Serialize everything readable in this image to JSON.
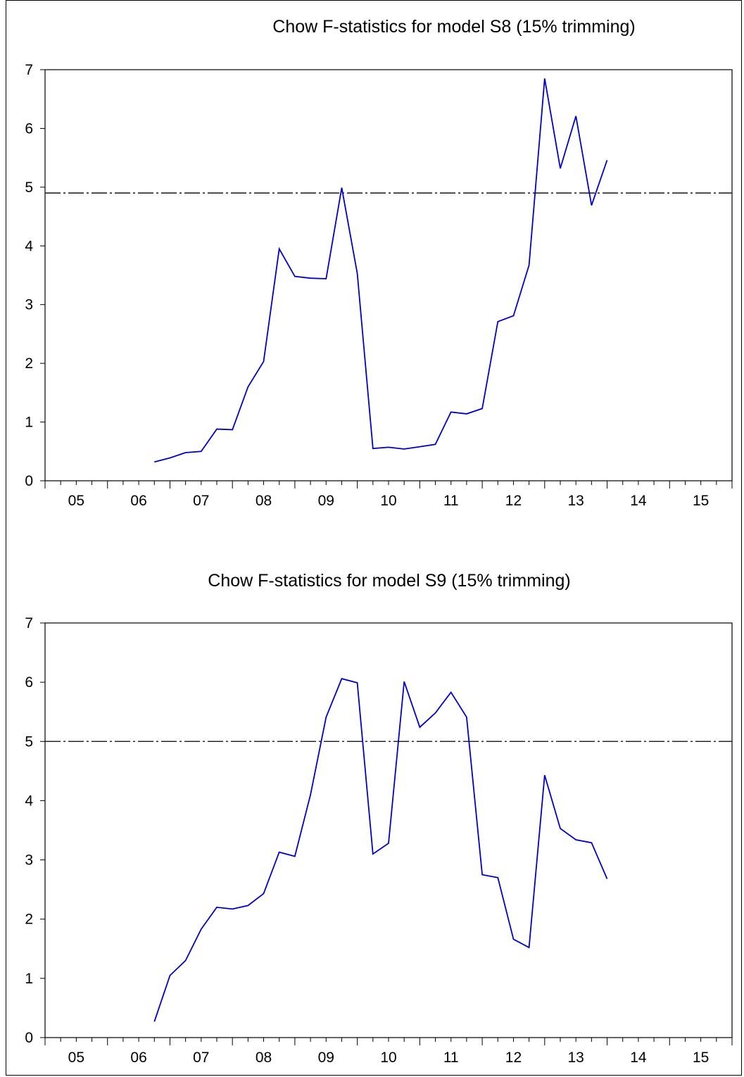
{
  "chart_data": [
    {
      "type": "line",
      "title": "Chow F-statistics for model S8 (15% trimming)",
      "xlabel": "",
      "ylabel": "",
      "x_tick_labels": [
        "05",
        "06",
        "07",
        "08",
        "09",
        "10",
        "11",
        "12",
        "13",
        "14",
        "15"
      ],
      "x_range": [
        2005.0,
        2016.0
      ],
      "ylim": [
        0,
        7
      ],
      "y_ticks": [
        0,
        1,
        2,
        3,
        4,
        5,
        6,
        7
      ],
      "grid": false,
      "reference_line": {
        "value": 4.9,
        "style": "dashed",
        "color": "#000000"
      },
      "series": [
        {
          "color": "#0000cc",
          "x": [
            2006.75,
            2007.0,
            2007.25,
            2007.5,
            2007.75,
            2008.0,
            2008.25,
            2008.5,
            2008.75,
            2009.0,
            2009.25,
            2009.5,
            2009.75,
            2010.0,
            2010.25,
            2010.5,
            2010.75,
            2011.0,
            2011.25,
            2011.5,
            2011.75,
            2012.0,
            2012.25,
            2012.5,
            2012.75,
            2013.0,
            2013.25,
            2013.5,
            2013.75,
            2014.0
          ],
          "values": [
            0.32,
            0.39,
            0.48,
            0.5,
            0.88,
            0.87,
            1.6,
            2.03,
            3.95,
            3.48,
            3.45,
            3.44,
            4.99,
            3.53,
            0.55,
            0.57,
            0.54,
            0.58,
            0.62,
            1.17,
            1.14,
            1.23,
            2.71,
            2.81,
            3.67,
            6.85,
            5.32,
            6.21,
            4.69,
            5.46
          ]
        }
      ]
    },
    {
      "type": "line",
      "title": "Chow F-statistics for model S9 (15% trimming)",
      "xlabel": "",
      "ylabel": "",
      "x_tick_labels": [
        "05",
        "06",
        "07",
        "08",
        "09",
        "10",
        "11",
        "12",
        "13",
        "14",
        "15"
      ],
      "x_range": [
        2005.0,
        2016.0
      ],
      "ylim": [
        0,
        7
      ],
      "y_ticks": [
        0,
        1,
        2,
        3,
        4,
        5,
        6,
        7
      ],
      "grid": false,
      "reference_line": {
        "value": 5.0,
        "style": "dashed",
        "color": "#000000"
      },
      "series": [
        {
          "color": "#0000cc",
          "x": [
            2006.75,
            2007.0,
            2007.25,
            2007.5,
            2007.75,
            2008.0,
            2008.25,
            2008.5,
            2008.75,
            2009.0,
            2009.25,
            2009.5,
            2009.75,
            2010.0,
            2010.25,
            2010.5,
            2010.75,
            2011.0,
            2011.25,
            2011.5,
            2011.75,
            2012.0,
            2012.25,
            2012.5,
            2012.75,
            2013.0,
            2013.25,
            2013.5,
            2013.75,
            2014.0
          ],
          "values": [
            0.27,
            1.05,
            1.3,
            1.83,
            2.2,
            2.17,
            2.23,
            2.43,
            3.13,
            3.06,
            4.1,
            5.41,
            6.06,
            5.99,
            3.1,
            3.28,
            6.01,
            5.24,
            5.48,
            5.83,
            5.41,
            2.75,
            2.7,
            1.66,
            1.52,
            4.43,
            3.53,
            3.34,
            3.29,
            2.68
          ]
        }
      ]
    }
  ]
}
